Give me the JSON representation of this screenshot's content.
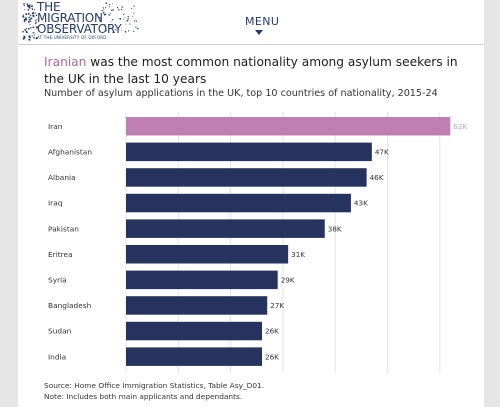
{
  "header": {
    "logo": {
      "line1": "THE",
      "line2": "MIGRATION",
      "line3": "OBSERVATORY",
      "subline": "AT THE UNIVERSITY OF OXFORD"
    },
    "menu_label": "MENU"
  },
  "title": {
    "highlight": "Iranian",
    "rest": " was the most common nationality among asylum seekers in the UK in the last 10 years"
  },
  "subtitle": "Number of asylum applications in the UK, top 10 countries of nationality, 2015-24",
  "chart_data": {
    "type": "bar",
    "orientation": "horizontal",
    "categories": [
      "Iran",
      "Afghanistan",
      "Albania",
      "Iraq",
      "Pakistan",
      "Eritrea",
      "Syria",
      "Bangladesh",
      "Sudan",
      "India"
    ],
    "values": [
      62000,
      47000,
      46000,
      43000,
      38000,
      31000,
      29000,
      27000,
      26000,
      26000
    ],
    "data_labels": [
      "62K",
      "47K",
      "46K",
      "43K",
      "38K",
      "31K",
      "29K",
      "27K",
      "26K",
      "26K"
    ],
    "xlim": [
      0,
      65000
    ],
    "gridlines": [
      0,
      10000,
      20000,
      30000,
      40000,
      50000,
      60000
    ],
    "grid": true,
    "colors": {
      "highlight": "#c07fb2",
      "highlight_label": "#b9a9b8",
      "bar": "#27335f",
      "label": "#333333",
      "grid": "#dddddd"
    },
    "highlight_index": 0
  },
  "footer": {
    "source": "Source: Home Office Immigration Statistics, Table Asy_D01.",
    "note": "Note: Includes both main applicants and dependants."
  }
}
